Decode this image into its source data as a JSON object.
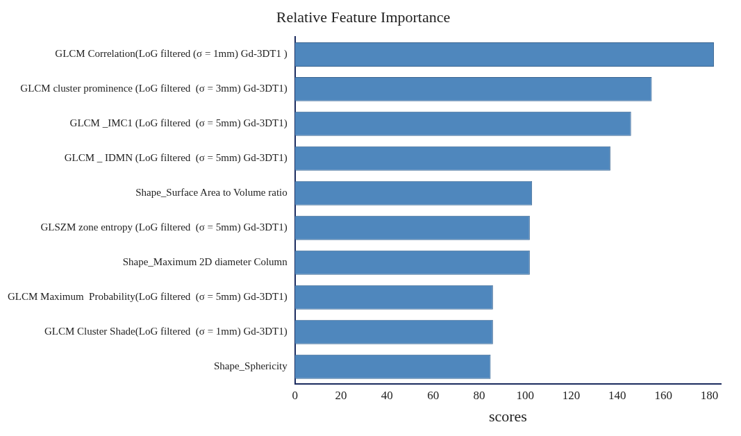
{
  "chart_data": {
    "type": "bar",
    "orientation": "horizontal",
    "title": "Relative Feature Importance",
    "xlabel": "scores",
    "categories": [
      "GLCM Correlation(LoG filtered (σ = 1mm) Gd-3DT1 )",
      "GLCM cluster prominence (LoG filtered  (σ = 3mm) Gd-3DT1)",
      "GLCM _IMC1 (LoG filtered  (σ = 5mm) Gd-3DT1)",
      "GLCM _ IDMN (LoG filtered  (σ = 5mm) Gd-3DT1)",
      "Shape_Surface Area to Volume ratio",
      "GLSZM zone entropy (LoG filtered  (σ = 5mm) Gd-3DT1)",
      "Shape_Maximum 2D diameter Column",
      "GLCM Maximum  Probability(LoG filtered  (σ = 5mm) Gd-3DT1)",
      "GLCM Cluster Shade(LoG filtered  (σ = 1mm) Gd-3DT1)",
      "Shape_Sphericity"
    ],
    "values": [
      182,
      155,
      146,
      137,
      103,
      102,
      102,
      86,
      86,
      85
    ],
    "color": "#4f87bd",
    "xlim": [
      0,
      185
    ],
    "xticks": [
      0,
      20,
      40,
      60,
      80,
      100,
      120,
      140,
      160,
      180
    ],
    "grid": false,
    "legend": false
  }
}
